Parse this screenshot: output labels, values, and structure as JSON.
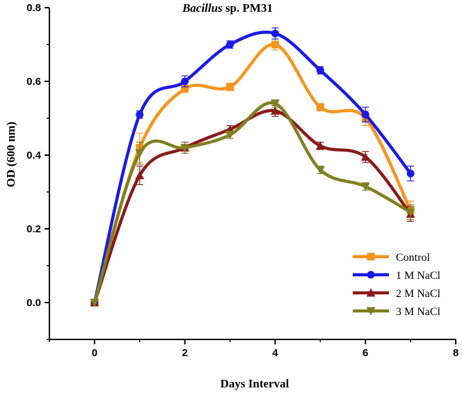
{
  "chart_data": {
    "type": "line",
    "title_italic": "Bacillus",
    "title_rest": " sp. PM31",
    "xlabel": "Days Interval",
    "ylabel": "OD (600 nm)",
    "xlim": [
      -1,
      8
    ],
    "ylim": [
      -0.1,
      0.8
    ],
    "xticks": [
      0,
      2,
      4,
      6,
      8
    ],
    "yticks": [
      0.0,
      0.2,
      0.4,
      0.6,
      0.8
    ],
    "xtick_labels": [
      "0",
      "2",
      "4",
      "6",
      "8"
    ],
    "ytick_labels": [
      "0.0",
      "0.2",
      "0.4",
      "0.6",
      "0.8"
    ],
    "legend_position": "bottom-right",
    "x": [
      0,
      1,
      2,
      3,
      4,
      5,
      6,
      7
    ],
    "series": [
      {
        "name": "Control",
        "color": "#F7941D",
        "marker": "square",
        "values": [
          0.0,
          0.42,
          0.58,
          0.585,
          0.7,
          0.53,
          0.5,
          0.25
        ],
        "errors": [
          0.0,
          0.04,
          0.01,
          0.01,
          0.015,
          0.01,
          0.02,
          0.025
        ]
      },
      {
        "name": "1 M NaCl",
        "color": "#1A1AE6",
        "marker": "circle",
        "values": [
          0.0,
          0.51,
          0.6,
          0.7,
          0.73,
          0.63,
          0.51,
          0.35
        ],
        "errors": [
          0.0,
          0.01,
          0.015,
          0.01,
          0.015,
          0.01,
          0.02,
          0.02
        ]
      },
      {
        "name": "2 M NaCl",
        "color": "#8B1A1A",
        "marker": "triangle-up",
        "values": [
          0.0,
          0.345,
          0.42,
          0.47,
          0.52,
          0.425,
          0.395,
          0.24
        ],
        "errors": [
          0.0,
          0.025,
          0.015,
          0.01,
          0.015,
          0.01,
          0.015,
          0.02
        ]
      },
      {
        "name": "3 M NaCl",
        "color": "#808020",
        "marker": "triangle-down",
        "values": [
          0.0,
          0.405,
          0.42,
          0.455,
          0.54,
          0.36,
          0.315,
          0.245
        ],
        "errors": [
          0.0,
          0.03,
          0.015,
          0.01,
          0.01,
          0.01,
          0.01,
          0.02
        ]
      }
    ]
  }
}
